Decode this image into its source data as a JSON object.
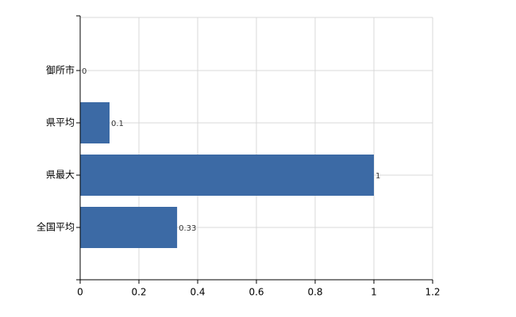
{
  "chart_data": {
    "type": "hbar",
    "categories": [
      "御所市",
      "県平均",
      "県最大",
      "全国平均"
    ],
    "values": [
      0,
      0.1,
      1,
      0.33
    ],
    "color": "#3c6aa5",
    "xlim": [
      0,
      1.2
    ],
    "xticks": [
      0,
      0.2,
      0.4,
      0.6,
      0.8,
      1,
      1.2
    ],
    "grid": true
  }
}
